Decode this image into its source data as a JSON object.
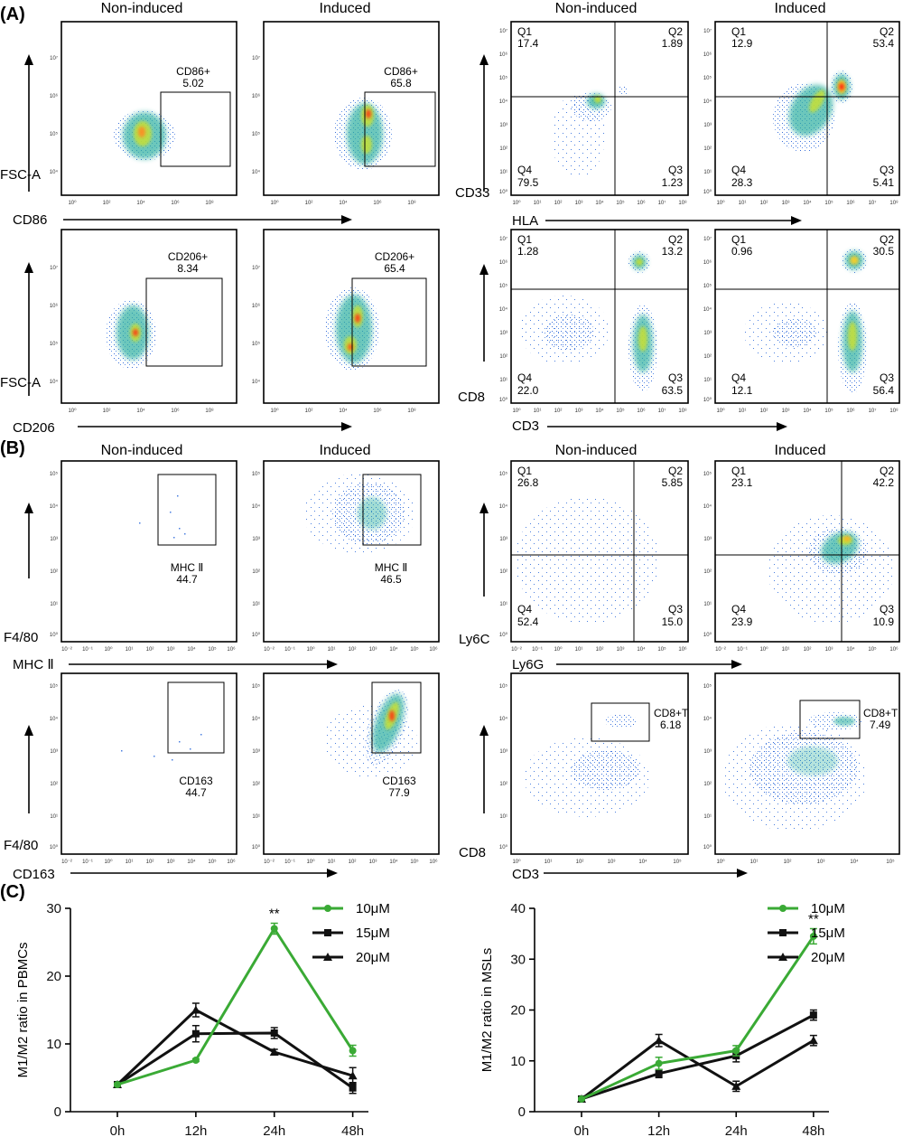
{
  "section_labels": {
    "a": "(A)",
    "b": "(B)",
    "c": "(C)"
  },
  "col_titles": {
    "noninduced": "Non-induced",
    "induced": "Induced"
  },
  "flow_panels_A": {
    "cd86": {
      "x_label": "CD86",
      "y_label": "FSC-A",
      "non": {
        "gate_name": "CD86+",
        "gate_value": "5.02"
      },
      "ind": {
        "gate_name": "CD86+",
        "gate_value": "65.8"
      }
    },
    "cd206": {
      "x_label": "CD206",
      "y_label": "FSC-A",
      "non": {
        "gate_name": "CD206+",
        "gate_value": "8.34"
      },
      "ind": {
        "gate_name": "CD206+",
        "gate_value": "65.4"
      }
    },
    "hla": {
      "x_label": "HLA",
      "y_label": "CD33",
      "non": {
        "q1": "Q1",
        "q1v": "17.4",
        "q2": "Q2",
        "q2v": "1.89",
        "q3": "Q3",
        "q3v": "1.23",
        "q4": "Q4",
        "q4v": "79.5"
      },
      "ind": {
        "q1": "Q1",
        "q1v": "12.9",
        "q2": "Q2",
        "q2v": "53.4",
        "q3": "Q3",
        "q3v": "5.41",
        "q4": "Q4",
        "q4v": "28.3"
      }
    },
    "cd3": {
      "x_label": "CD3",
      "y_label": "CD8",
      "non": {
        "q1": "Q1",
        "q1v": "1.28",
        "q2": "Q2",
        "q2v": "13.2",
        "q3": "Q3",
        "q3v": "63.5",
        "q4": "Q4",
        "q4v": "22.0"
      },
      "ind": {
        "q1": "Q1",
        "q1v": "0.96",
        "q2": "Q2",
        "q2v": "30.5",
        "q3": "Q3",
        "q3v": "56.4",
        "q4": "Q4",
        "q4v": "12.1"
      }
    }
  },
  "flow_panels_B": {
    "mhc": {
      "x_label": "MHC Ⅱ",
      "y_label": "F4/80",
      "non": {
        "gate_name": "MHC Ⅱ",
        "gate_value": "44.7"
      },
      "ind": {
        "gate_name": "MHC Ⅱ",
        "gate_value": "46.5"
      }
    },
    "cd163": {
      "x_label": "CD163",
      "y_label": "F4/80",
      "non": {
        "gate_name": "CD163",
        "gate_value": "44.7"
      },
      "ind": {
        "gate_name": "CD163",
        "gate_value": "77.9"
      }
    },
    "ly6": {
      "x_label": "Ly6G",
      "y_label": "Ly6C",
      "non": {
        "q1": "Q1",
        "q1v": "26.8",
        "q2": "Q2",
        "q2v": "5.85",
        "q3": "Q3",
        "q3v": "15.0",
        "q4": "Q4",
        "q4v": "52.4"
      },
      "ind": {
        "q1": "Q1",
        "q1v": "23.1",
        "q2": "Q2",
        "q2v": "42.2",
        "q3": "Q3",
        "q3v": "10.9",
        "q4": "Q4",
        "q4v": "23.9"
      }
    },
    "cd8t": {
      "x_label": "CD3",
      "y_label": "CD8",
      "non": {
        "gate_name": "CD8+T",
        "gate_value": "6.18"
      },
      "ind": {
        "gate_name": "CD8+T",
        "gate_value": "7.49"
      }
    }
  },
  "ticks": {
    "a_y": [
      "10⁴",
      "10⁵",
      "10⁶",
      "10⁷"
    ],
    "a_x": [
      "10⁰",
      "10²",
      "10⁴",
      "10⁶",
      "10⁸"
    ],
    "q_y": [
      "10⁰",
      "10¹",
      "10²",
      "10³",
      "10⁴",
      "10⁵",
      "10⁶",
      "10⁷"
    ],
    "q_x": [
      "10⁰",
      "10¹",
      "10²",
      "10³",
      "10⁴",
      "10⁵",
      "10⁶",
      "10⁷",
      "10⁸"
    ],
    "b_y": [
      "10⁰",
      "10¹",
      "10²",
      "10³",
      "10⁴",
      "10⁵"
    ],
    "b_x": [
      "10⁻²",
      "10⁻¹",
      "10⁰",
      "10¹",
      "10²",
      "10³",
      "10⁴",
      "10⁵",
      "10⁶"
    ],
    "c3_x": [
      "10⁰",
      "10¹",
      "10²",
      "10³",
      "10⁴",
      "10⁵"
    ]
  },
  "chart_data": [
    {
      "type": "line",
      "ylabel": "M1/M2 ratio in PBMCs",
      "categories": [
        "0h",
        "12h",
        "24h",
        "48h"
      ],
      "ylim": [
        0,
        30
      ],
      "yticks": [
        0,
        10,
        20,
        30
      ],
      "series": [
        {
          "name": "10μM",
          "color": "#3aaa35",
          "marker": "circle",
          "values": [
            4,
            7.6,
            27,
            9
          ],
          "errors": [
            0.2,
            0.2,
            0.8,
            0.8
          ]
        },
        {
          "name": "15μM",
          "color": "#111111",
          "marker": "square",
          "values": [
            4,
            11.5,
            11.6,
            3.5
          ],
          "errors": [
            0.2,
            1.2,
            0.8,
            0.8
          ]
        },
        {
          "name": "20μM",
          "color": "#111111",
          "marker": "triangle",
          "values": [
            4,
            15,
            8.8,
            5.3
          ],
          "errors": [
            0.2,
            1,
            0.4,
            1.2
          ]
        }
      ],
      "annotation": {
        "text": "**",
        "category": "24h"
      }
    },
    {
      "type": "line",
      "ylabel": "M1/M2 ratio in MSLs",
      "categories": [
        "0h",
        "12h",
        "24h",
        "48h"
      ],
      "ylim": [
        0,
        40
      ],
      "yticks": [
        0,
        10,
        20,
        30,
        40
      ],
      "series": [
        {
          "name": "10μM",
          "color": "#3aaa35",
          "marker": "circle",
          "values": [
            2.5,
            9.5,
            12,
            34.5
          ],
          "errors": [
            0.2,
            1.2,
            1,
            1.5
          ]
        },
        {
          "name": "15μM",
          "color": "#111111",
          "marker": "square",
          "values": [
            2.5,
            7.5,
            11,
            19
          ],
          "errors": [
            0.2,
            0.8,
            1.2,
            1
          ]
        },
        {
          "name": "20μM",
          "color": "#111111",
          "marker": "triangle",
          "values": [
            2.5,
            14,
            5,
            14
          ],
          "errors": [
            0.2,
            1.2,
            1,
            1
          ]
        }
      ],
      "annotation": {
        "text": "**",
        "category": "48h"
      }
    }
  ]
}
